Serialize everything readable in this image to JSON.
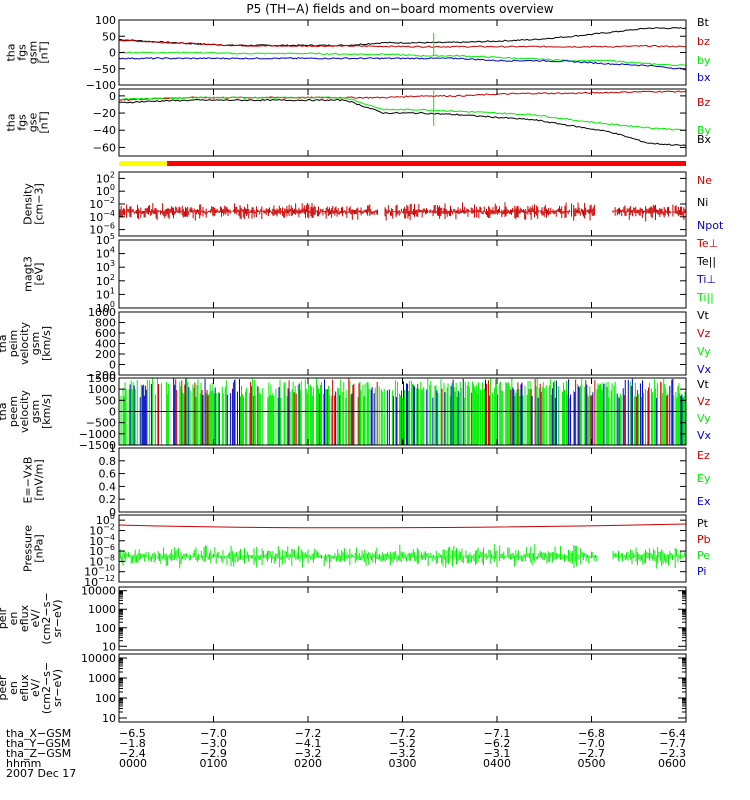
{
  "title": "P5 (TH−A) fields and on−board moments overview",
  "colors": {
    "black": "#000000",
    "red": "#cc0000",
    "green": "#00ee00",
    "blue": "#0000cc",
    "yellow": "#ffff00",
    "barred": "#ff0000"
  },
  "chart_data": [
    {
      "type": "line",
      "id": "fgs-gsm",
      "ylabel": [
        "tha",
        "fgs",
        "gsm",
        "[nT]"
      ],
      "yticks": [
        100,
        50,
        0,
        -50,
        -100
      ],
      "ylim": [
        -100,
        100
      ],
      "series": [
        {
          "name": "Bt",
          "color": "red_black",
          "values": [
            40,
            33,
            27,
            22,
            22,
            22,
            22,
            30,
            30,
            31,
            35,
            40,
            50,
            62,
            75,
            75
          ]
        },
        {
          "name": "bz",
          "color": "red",
          "values": [
            38,
            32,
            27,
            22,
            20,
            20,
            20,
            19,
            18,
            18,
            18,
            18,
            18,
            18,
            20,
            18
          ]
        },
        {
          "name": "by",
          "color": "green",
          "values": [
            0,
            0,
            0,
            -3,
            -3,
            -3,
            -5,
            -5,
            -10,
            -10,
            -15,
            -20,
            -25,
            -25,
            -35,
            -40
          ]
        },
        {
          "name": "bx",
          "color": "blue",
          "values": [
            -18,
            -18,
            -18,
            -18,
            -18,
            -18,
            -18,
            -18,
            -18,
            -18,
            -25,
            -25,
            -28,
            -35,
            -40,
            -52
          ]
        }
      ],
      "legend": [
        {
          "label": "Bt",
          "color": "black"
        },
        {
          "label": "bz",
          "color": "red"
        },
        {
          "label": "by",
          "color": "green"
        },
        {
          "label": "bx",
          "color": "blue"
        }
      ]
    },
    {
      "type": "line",
      "id": "fgs-gse",
      "ylabel": [
        "tha",
        "fgs",
        "gse",
        "[nT]"
      ],
      "yticks": [
        0,
        -20,
        -40,
        -60
      ],
      "ylim": [
        -70,
        8
      ],
      "series": [
        {
          "name": "Bz",
          "color": "red",
          "values": [
            -5,
            -3,
            -2,
            -2,
            -2,
            -2,
            -2,
            -2,
            0,
            0,
            2,
            3,
            3,
            4,
            5,
            5
          ]
        },
        {
          "name": "By",
          "color": "green",
          "values": [
            -4,
            -3,
            -2,
            -2,
            -2,
            -2,
            -2,
            -16,
            -16,
            -18,
            -20,
            -22,
            -28,
            -33,
            -37,
            -40
          ]
        },
        {
          "name": "Bx",
          "color": "black",
          "values": [
            -8,
            -6,
            -5,
            -5,
            -5,
            -5,
            -5,
            -20,
            -20,
            -22,
            -25,
            -28,
            -35,
            -42,
            -55,
            -58
          ]
        }
      ],
      "legend": [
        {
          "label": "Bz",
          "color": "red"
        },
        {
          "label": "By",
          "color": "green"
        },
        {
          "label": "Bx",
          "color": "black"
        }
      ]
    },
    {
      "type": "log-line",
      "id": "density",
      "ylabel": [
        "Density",
        "[cm−3]"
      ],
      "ytickexp": [
        2,
        0,
        -2,
        -4,
        -6
      ],
      "ylog": [
        -7,
        3
      ],
      "legend": [
        {
          "label": "Ne",
          "color": "red"
        },
        {
          "label": "Ni",
          "color": "black"
        },
        {
          "label": "Npot",
          "color": "blue"
        }
      ]
    },
    {
      "type": "log-line",
      "id": "temp",
      "ylabel": [
        "magt3",
        "[eV]"
      ],
      "ytickexp": [
        5,
        4,
        3,
        2,
        1,
        0
      ],
      "ylog": [
        0,
        5
      ],
      "legend": [
        {
          "label": "Te⊥",
          "color": "red"
        },
        {
          "label": "Te||",
          "color": "black"
        },
        {
          "label": "Ti⊥",
          "color": "blue"
        },
        {
          "label": "Ti||",
          "color": "green"
        }
      ]
    },
    {
      "type": "line",
      "id": "peim-vel",
      "ylabel": [
        "tha",
        "peim",
        "velocity",
        "gsm",
        "[km/s]"
      ],
      "yticks": [
        1000,
        800,
        600,
        400,
        200,
        0,
        -200
      ],
      "ylim": [
        -200,
        1000
      ],
      "legend": [
        {
          "label": "Vt",
          "color": "black"
        },
        {
          "label": "Vz",
          "color": "red"
        },
        {
          "label": "Vy",
          "color": "green"
        },
        {
          "label": "Vx",
          "color": "blue"
        }
      ]
    },
    {
      "type": "line",
      "id": "peem-vel",
      "ylabel": [
        "tha",
        "peem",
        "velocity",
        "gsm",
        "[km/s]"
      ],
      "yticks": [
        1500,
        1000,
        500,
        0,
        -500,
        -1000,
        -1500
      ],
      "ylim": [
        -1500,
        1500
      ],
      "legend": [
        {
          "label": "Vt",
          "color": "black"
        },
        {
          "label": "Vz",
          "color": "red"
        },
        {
          "label": "Vy",
          "color": "green"
        },
        {
          "label": "Vx",
          "color": "blue"
        }
      ]
    },
    {
      "type": "line",
      "id": "evxb",
      "ylabel": [
        "E=−VxB",
        "[mV/m]"
      ],
      "yticks": [
        1.0,
        0.8,
        0.6,
        0.4,
        0.2,
        0.0
      ],
      "ylim": [
        0,
        1
      ],
      "legend": [
        {
          "label": "Ez",
          "color": "red"
        },
        {
          "label": "Ey",
          "color": "green"
        },
        {
          "label": "Ex",
          "color": "blue"
        }
      ]
    },
    {
      "type": "log-line",
      "id": "pressure",
      "ylabel": [
        "Pressure",
        "[nPa]"
      ],
      "ytickexp": [
        0,
        -2,
        -4,
        -6,
        -8,
        -10,
        -12
      ],
      "ylog": [
        -12,
        1
      ],
      "legend": [
        {
          "label": "Pt",
          "color": "black"
        },
        {
          "label": "Pb",
          "color": "red"
        },
        {
          "label": "Pe",
          "color": "green"
        },
        {
          "label": "Pi",
          "color": "blue"
        }
      ]
    },
    {
      "type": "spectrogram",
      "id": "peir",
      "ylabel": [
        "tha",
        "peir",
        "en",
        "eflux",
        "eV/",
        "(cm2−s−",
        "sr−eV)"
      ],
      "yticklabels": [
        "10000",
        "1000",
        "100",
        "10"
      ],
      "ylog": [
        0.8,
        4.2
      ]
    },
    {
      "type": "spectrogram",
      "id": "peer",
      "ylabel": [
        "tha",
        "peer",
        "en",
        "eflux",
        "eV/",
        "(cm2−s−",
        "sr−eV)"
      ],
      "yticklabels": [
        "10000",
        "1000",
        "100",
        "10"
      ],
      "ylog": [
        0.8,
        4.2
      ]
    }
  ],
  "xaxis": {
    "rows": [
      {
        "label": "tha_X−GSM",
        "values": [
          "−6.5",
          "−7.0",
          "−7.2",
          "−7.2",
          "−7.1",
          "−6.8",
          "−6.4"
        ]
      },
      {
        "label": "tha_Y−GSM",
        "values": [
          "−1.8",
          "−3.0",
          "−4.1",
          "−5.2",
          "−6.2",
          "−7.0",
          "−7.7"
        ]
      },
      {
        "label": "tha_Z−GSM",
        "values": [
          "−2.4",
          "−2.9",
          "−3.2",
          "−3.2",
          "−3.1",
          "−2.7",
          "−2.3"
        ]
      },
      {
        "label": "hhmm",
        "values": [
          "0000",
          "0100",
          "0200",
          "0300",
          "0400",
          "0500",
          "0600"
        ]
      }
    ],
    "date": "2007 Dec 17"
  }
}
